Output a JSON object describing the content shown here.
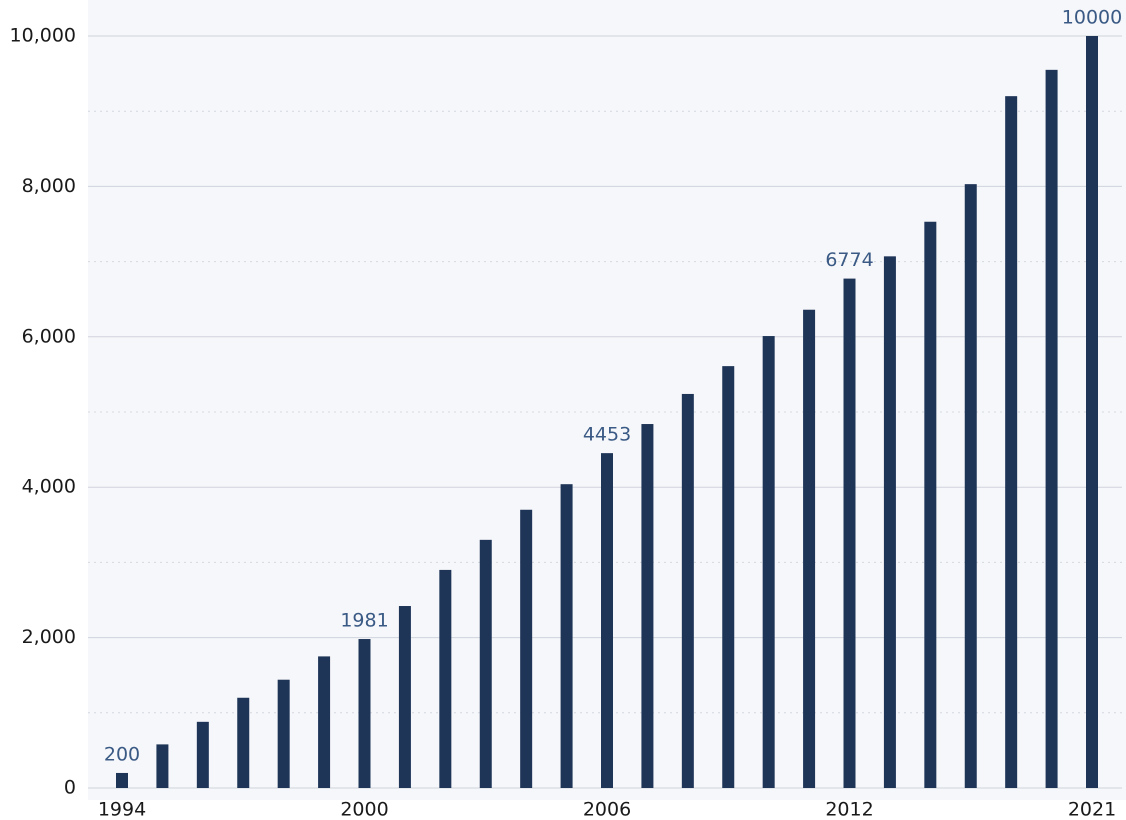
{
  "chart_data": {
    "type": "bar",
    "categories": [
      "1994",
      null,
      null,
      null,
      null,
      null,
      "2000",
      null,
      null,
      null,
      null,
      null,
      "2006",
      null,
      null,
      null,
      null,
      null,
      "2012",
      null,
      null,
      null,
      null,
      null,
      "2021"
    ],
    "values": [
      200,
      580,
      880,
      1200,
      1440,
      1750,
      1981,
      2420,
      2900,
      3300,
      3700,
      4040,
      4453,
      4840,
      5240,
      5610,
      6010,
      6360,
      6774,
      7070,
      7530,
      8030,
      9200,
      9550,
      10000
    ],
    "value_labels": [
      "200",
      null,
      null,
      null,
      null,
      null,
      "1981",
      null,
      null,
      null,
      null,
      null,
      "4453",
      null,
      null,
      null,
      null,
      null,
      "6774",
      null,
      null,
      null,
      null,
      null,
      "10000"
    ],
    "color": "#1f3558",
    "ylim": [
      0,
      10000
    ],
    "yticks": [
      0,
      {
        "value": 2000,
        "label": "2,000"
      },
      {
        "value": 4000,
        "label": "4,000"
      },
      {
        "value": 6000,
        "label": "6,000"
      },
      {
        "value": 8000,
        "label": "8,000"
      },
      {
        "value": 10000,
        "label": "10,000"
      }
    ],
    "yminor": [
      1000,
      3000,
      5000,
      7000,
      9000
    ],
    "grid": true
  }
}
